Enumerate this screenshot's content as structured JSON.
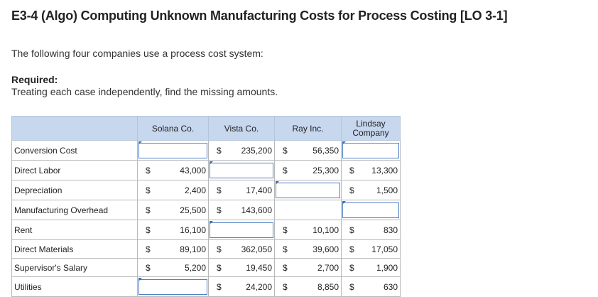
{
  "title": "E3-4 (Algo) Computing Unknown Manufacturing Costs for Process Costing [LO 3-1]",
  "intro": "The following four companies use a process cost system:",
  "required_heading": "Required:",
  "required_text": "Treating each case independently, find the missing amounts.",
  "table": {
    "columns": [
      "Solana Co.",
      "Vista Co.",
      "Ray Inc.",
      "Lindsay Company"
    ],
    "currency": "$",
    "rows": [
      {
        "label": "Conversion Cost",
        "cells": [
          {
            "type": "input",
            "value": ""
          },
          {
            "type": "value",
            "cur": "$",
            "val": "235,200"
          },
          {
            "type": "value",
            "cur": "$",
            "val": "56,350"
          },
          {
            "type": "input",
            "value": ""
          }
        ]
      },
      {
        "label": "Direct Labor",
        "cells": [
          {
            "type": "value",
            "cur": "$",
            "val": "43,000"
          },
          {
            "type": "input",
            "value": ""
          },
          {
            "type": "value",
            "cur": "$",
            "val": "25,300"
          },
          {
            "type": "value",
            "cur": "$",
            "val": "13,300"
          }
        ]
      },
      {
        "label": "Depreciation",
        "cells": [
          {
            "type": "value",
            "cur": "$",
            "val": "2,400"
          },
          {
            "type": "value",
            "cur": "$",
            "val": "17,400"
          },
          {
            "type": "input",
            "value": ""
          },
          {
            "type": "value",
            "cur": "$",
            "val": "1,500"
          }
        ]
      },
      {
        "label": "Manufacturing Overhead",
        "cells": [
          {
            "type": "value",
            "cur": "$",
            "val": "25,500"
          },
          {
            "type": "value",
            "cur": "$",
            "val": "143,600"
          },
          {
            "type": "empty"
          },
          {
            "type": "input",
            "value": ""
          }
        ]
      },
      {
        "label": "Rent",
        "cells": [
          {
            "type": "value",
            "cur": "$",
            "val": "16,100"
          },
          {
            "type": "input",
            "value": ""
          },
          {
            "type": "value",
            "cur": "$",
            "val": "10,100"
          },
          {
            "type": "value",
            "cur": "$",
            "val": "830"
          }
        ]
      },
      {
        "label": "Direct Materials",
        "cells": [
          {
            "type": "value",
            "cur": "$",
            "val": "89,100"
          },
          {
            "type": "value",
            "cur": "$",
            "val": "362,050"
          },
          {
            "type": "value",
            "cur": "$",
            "val": "39,600"
          },
          {
            "type": "value",
            "cur": "$",
            "val": "17,050"
          }
        ]
      },
      {
        "label": "Supervisor's Salary",
        "cells": [
          {
            "type": "value",
            "cur": "$",
            "val": "5,200"
          },
          {
            "type": "value",
            "cur": "$",
            "val": "19,450"
          },
          {
            "type": "value",
            "cur": "$",
            "val": "2,700"
          },
          {
            "type": "value",
            "cur": "$",
            "val": "1,900"
          }
        ]
      },
      {
        "label": "Utilities",
        "cells": [
          {
            "type": "input",
            "value": ""
          },
          {
            "type": "value",
            "cur": "$",
            "val": "24,200"
          },
          {
            "type": "value",
            "cur": "$",
            "val": "8,850"
          },
          {
            "type": "value",
            "cur": "$",
            "val": "630"
          }
        ]
      }
    ]
  }
}
